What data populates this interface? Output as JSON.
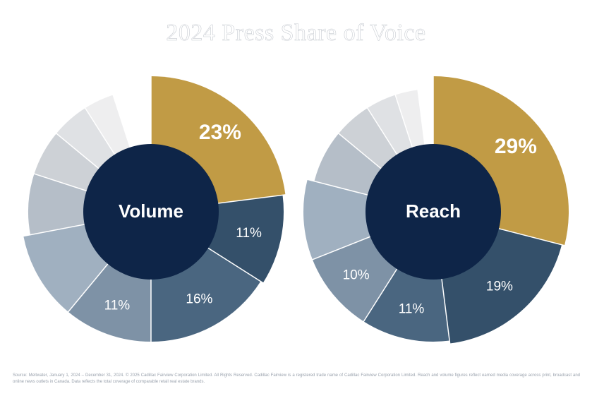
{
  "title": "2024 Press Share of Voice",
  "footnote": "Source: Meltwater, January 1, 2024 – December 31, 2024. © 2025 Cadillac Fairview Corporation Limited. All Rights Reserved. Cadillac Fairview is a registered trade name of Cadillac Fairview Corporation Limited. Reach and volume figures reflect earned media coverage across print, broadcast and online news outlets in Canada. Data reflects the total coverage of comparable retail real estate brands.",
  "colors": {
    "highlight": "#c19b45",
    "navy": "#0e2548",
    "slate": [
      "#34506a",
      "#4a6680",
      "#7e92a6",
      "#a0b0c0",
      "#b5bec8",
      "#cdd1d6",
      "#dfe1e4",
      "#eeeeef",
      "#ffffff"
    ]
  },
  "chart_data": [
    {
      "type": "pie",
      "center_label": "Volume",
      "values": [
        23,
        11,
        16,
        11,
        11,
        8,
        6,
        5,
        4,
        5
      ],
      "labels": [
        "23%",
        "11%",
        "16%",
        "11%",
        "",
        "",
        "",
        "",
        "",
        ""
      ]
    },
    {
      "type": "pie",
      "center_label": "Reach",
      "values": [
        29,
        19,
        11,
        10,
        10,
        7,
        5,
        4,
        3,
        2
      ],
      "labels": [
        "29%",
        "19%",
        "11%",
        "10%",
        "",
        "",
        "",
        "",
        "",
        ""
      ]
    }
  ]
}
